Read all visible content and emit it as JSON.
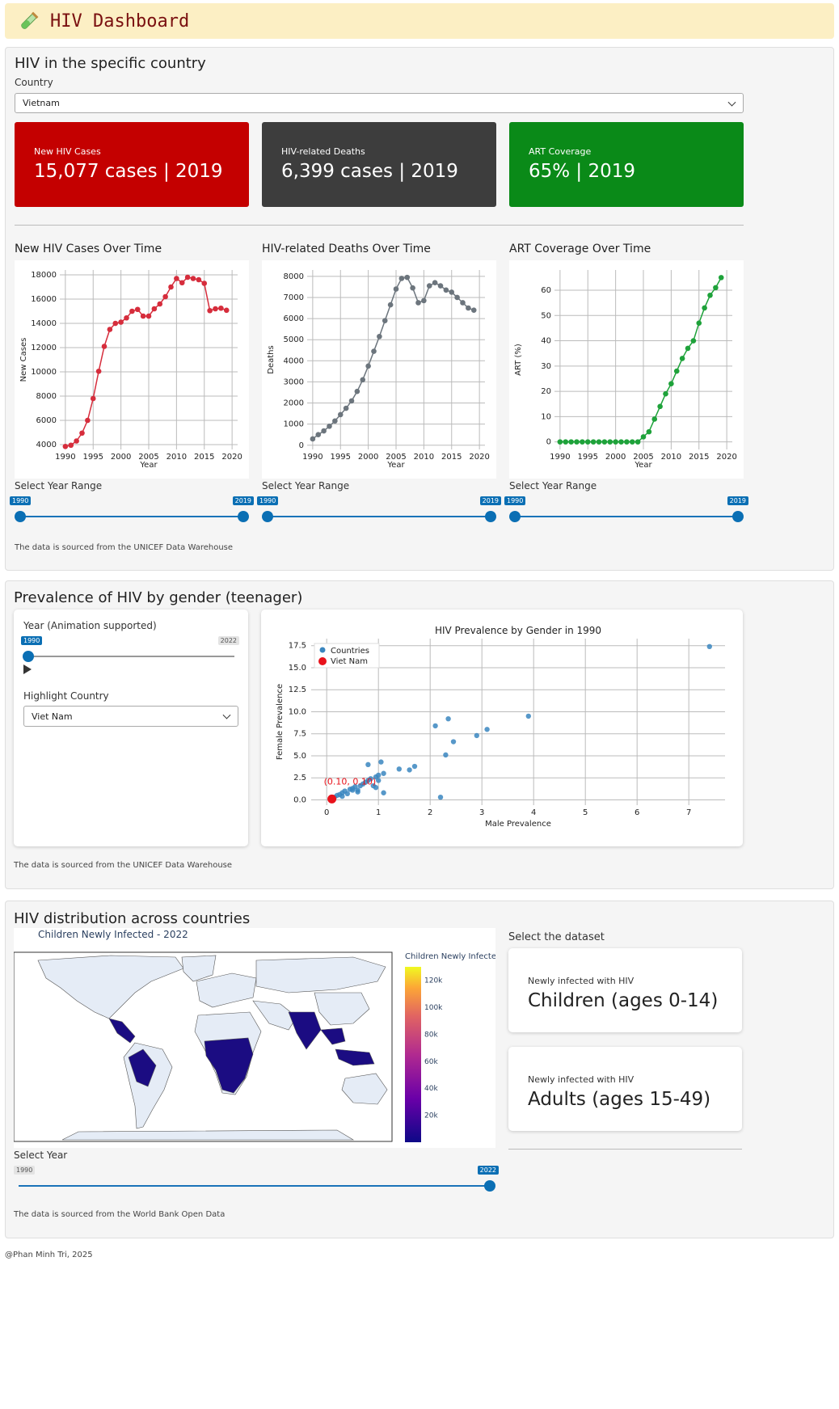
{
  "header": {
    "title": "HIV Dashboard"
  },
  "country_section": {
    "title": "HIV in the specific country",
    "country_label": "Country",
    "country_value": "Vietnam",
    "cards": [
      {
        "title": "New HIV Cases",
        "value": "15,077 cases | 2019",
        "color": "#c40000"
      },
      {
        "title": "HIV-related Deaths",
        "value": "6,399 cases | 2019",
        "color": "#3d3d3d"
      },
      {
        "title": "ART Coverage",
        "value": "65% | 2019",
        "color": "#0a8a18"
      }
    ],
    "range_label": "Select Year Range",
    "range_min": "1990",
    "range_max": "2019",
    "source": "The data is sourced from the UNICEF Data Warehouse"
  },
  "chart_data": [
    {
      "type": "line",
      "title": "New HIV Cases Over Time",
      "xlabel": "Year",
      "ylabel": "New Cases",
      "color": "#d62d3c",
      "xlim": [
        1989,
        2021
      ],
      "ylim": [
        3600,
        18400
      ],
      "xticks": [
        1990,
        1995,
        2000,
        2005,
        2010,
        2015,
        2020
      ],
      "yticks": [
        4000,
        6000,
        8000,
        10000,
        12000,
        14000,
        16000,
        18000
      ],
      "x": [
        1990,
        1991,
        1992,
        1993,
        1994,
        1995,
        1996,
        1997,
        1998,
        1999,
        2000,
        2001,
        2002,
        2003,
        2004,
        2005,
        2006,
        2007,
        2008,
        2009,
        2010,
        2011,
        2012,
        2013,
        2014,
        2015,
        2016,
        2017,
        2018,
        2019
      ],
      "y": [
        3850,
        3950,
        4300,
        4950,
        6000,
        7800,
        10050,
        12100,
        13500,
        14000,
        14100,
        14450,
        15000,
        15150,
        14600,
        14600,
        15200,
        15600,
        16200,
        17000,
        17700,
        17350,
        17800,
        17700,
        17600,
        17300,
        15050,
        15200,
        15250,
        15077
      ]
    },
    {
      "type": "line",
      "title": "HIV-related Deaths Over Time",
      "xlabel": "Year",
      "ylabel": "Deaths",
      "color": "#6c757d",
      "xlim": [
        1989,
        2021
      ],
      "ylim": [
        -200,
        8300
      ],
      "xticks": [
        1990,
        1995,
        2000,
        2005,
        2010,
        2015,
        2020
      ],
      "yticks": [
        0,
        1000,
        2000,
        3000,
        4000,
        5000,
        6000,
        7000,
        8000
      ],
      "x": [
        1990,
        1991,
        1992,
        1993,
        1994,
        1995,
        1996,
        1997,
        1998,
        1999,
        2000,
        2001,
        2002,
        2003,
        2004,
        2005,
        2006,
        2007,
        2008,
        2009,
        2010,
        2011,
        2012,
        2013,
        2014,
        2015,
        2016,
        2017,
        2018,
        2019
      ],
      "y": [
        300,
        500,
        680,
        900,
        1150,
        1450,
        1750,
        2100,
        2550,
        3100,
        3750,
        4450,
        5150,
        5900,
        6650,
        7400,
        7900,
        7950,
        7450,
        6750,
        6850,
        7550,
        7700,
        7550,
        7350,
        7250,
        7000,
        6750,
        6500,
        6399
      ]
    },
    {
      "type": "line",
      "title": "ART Coverage Over Time",
      "xlabel": "Year",
      "ylabel": "ART (%)",
      "color": "#1ea23a",
      "xlim": [
        1989,
        2021
      ],
      "ylim": [
        -3,
        68
      ],
      "xticks": [
        1990,
        1995,
        2000,
        2005,
        2010,
        2015,
        2020
      ],
      "yticks": [
        0,
        10,
        20,
        30,
        40,
        50,
        60
      ],
      "x": [
        1990,
        1991,
        1992,
        1993,
        1994,
        1995,
        1996,
        1997,
        1998,
        1999,
        2000,
        2001,
        2002,
        2003,
        2004,
        2005,
        2006,
        2007,
        2008,
        2009,
        2010,
        2011,
        2012,
        2013,
        2014,
        2015,
        2016,
        2017,
        2018,
        2019
      ],
      "y": [
        0,
        0,
        0,
        0,
        0,
        0,
        0,
        0,
        0,
        0,
        0,
        0,
        0,
        0,
        0,
        2,
        4,
        9,
        14,
        19,
        23,
        28,
        33,
        37,
        40,
        47,
        53,
        58,
        61,
        65
      ]
    },
    {
      "type": "scatter",
      "title": "HIV Prevalence by Gender in 1990",
      "xlabel": "Male Prevalence",
      "ylabel": "Female Prevalence",
      "xlim": [
        -0.3,
        7.7
      ],
      "ylim": [
        -0.6,
        18.3
      ],
      "xticks": [
        0,
        1,
        2,
        3,
        4,
        5,
        6,
        7
      ],
      "yticks": [
        0.0,
        2.5,
        5.0,
        7.5,
        10.0,
        12.5,
        15.0,
        17.5
      ],
      "series": [
        {
          "name": "Countries",
          "color": "#3a86bf",
          "x": [
            0.1,
            0.15,
            0.2,
            0.25,
            0.3,
            0.35,
            0.4,
            0.45,
            0.5,
            0.55,
            0.6,
            0.65,
            0.7,
            0.75,
            0.8,
            0.85,
            0.9,
            0.95,
            1.0,
            1.0,
            1.05,
            1.1,
            1.1,
            1.4,
            1.6,
            1.7,
            2.1,
            2.2,
            2.3,
            2.35,
            2.45,
            2.9,
            3.1,
            3.9,
            7.4,
            0.8,
            0.95,
            0.6,
            0.3,
            0.5
          ],
          "y": [
            0.2,
            0.3,
            0.5,
            0.6,
            0.8,
            1.0,
            0.7,
            1.2,
            1.3,
            1.5,
            1.1,
            1.6,
            1.8,
            2.0,
            2.2,
            2.4,
            1.6,
            2.6,
            2.8,
            2.2,
            4.3,
            3.0,
            0.8,
            3.5,
            3.4,
            3.8,
            8.4,
            0.3,
            5.1,
            9.2,
            6.6,
            7.3,
            8.0,
            9.5,
            17.4,
            4.0,
            1.4,
            0.9,
            0.4,
            1.1
          ]
        },
        {
          "name": "Viet Nam",
          "color": "#e8121b",
          "x": [
            0.1
          ],
          "y": [
            0.1
          ]
        }
      ],
      "annotation": "(0.10, 0.10)"
    },
    {
      "type": "heatmap",
      "title": "Children Newly Infected - 2022",
      "colorbar_title": "Children Newly Infected",
      "colorbar_ticks": [
        "20k",
        "40k",
        "60k",
        "80k",
        "100k",
        "120k"
      ],
      "colorbar_range": [
        0,
        130000
      ]
    }
  ],
  "gender_section": {
    "title": "Prevalence of HIV by gender (teenager)",
    "year_label": "Year (Animation supported)",
    "year_min": "1990",
    "year_max": "2022",
    "highlight_label": "Highlight Country",
    "highlight_value": "Viet Nam",
    "source": "The data is sourced from the UNICEF Data Warehouse"
  },
  "map_section": {
    "title": "HIV distribution across countries",
    "select_year_label": "Select Year",
    "year_min": "1990",
    "year_max": "2022",
    "dataset_label": "Select the dataset",
    "datasets": [
      {
        "sub": "Newly infected with HIV",
        "main": "Children (ages 0-14)"
      },
      {
        "sub": "Newly infected with HIV",
        "main": "Adults (ages 15-49)"
      }
    ],
    "source": "The data is sourced from the World Bank Open Data"
  },
  "footer": {
    "text": "@Phan Minh Tri, 2025"
  }
}
